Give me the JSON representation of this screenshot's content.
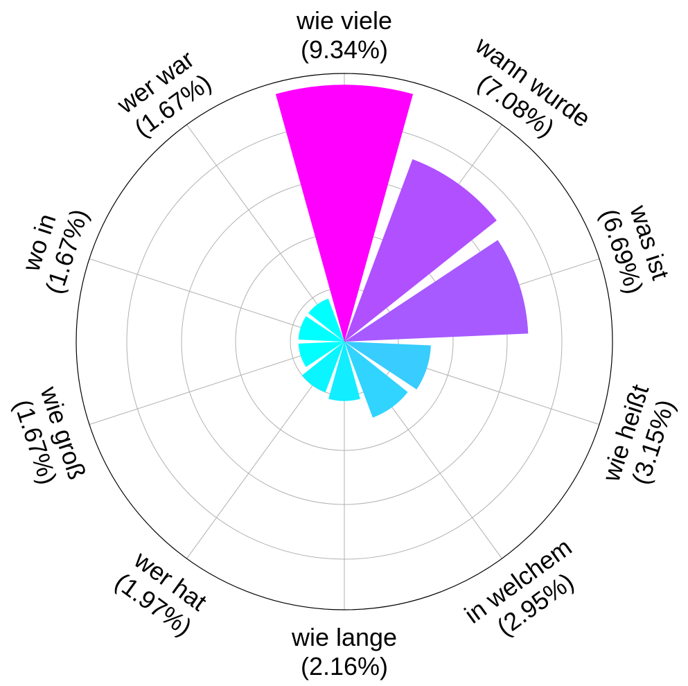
{
  "chart_data": {
    "type": "polar-bar",
    "title": "",
    "categories": [
      {
        "label": "wie viele",
        "pct": "(9.34%)",
        "value": 9.34,
        "color": "#ff00ff"
      },
      {
        "label": "wann wurde",
        "pct": "(7.08%)",
        "value": 7.08,
        "color": "#b050ff"
      },
      {
        "label": "was ist",
        "pct": "(6.69%)",
        "value": 6.69,
        "color": "#a65aff"
      },
      {
        "label": "wie heißt",
        "pct": "(3.15%)",
        "value": 3.15,
        "color": "#38ccff"
      },
      {
        "label": "in welchem",
        "pct": "(2.95%)",
        "value": 2.95,
        "color": "#30d4ff"
      },
      {
        "label": "wie lange",
        "pct": "(2.16%)",
        "value": 2.16,
        "color": "#12edff"
      },
      {
        "label": "wer hat",
        "pct": "(1.97%)",
        "value": 1.97,
        "color": "#0af5ff"
      },
      {
        "label": "wie groß",
        "pct": "(1.67%)",
        "value": 1.67,
        "color": "#00ffff"
      },
      {
        "label": "wo in",
        "pct": "(1.67%)",
        "value": 1.67,
        "color": "#00ffff"
      },
      {
        "label": "wer war",
        "pct": "(1.67%)",
        "value": 1.67,
        "color": "#00ffff"
      }
    ],
    "radial_max": 9.75,
    "grid": true,
    "grid_color": "#b0b0b0"
  }
}
